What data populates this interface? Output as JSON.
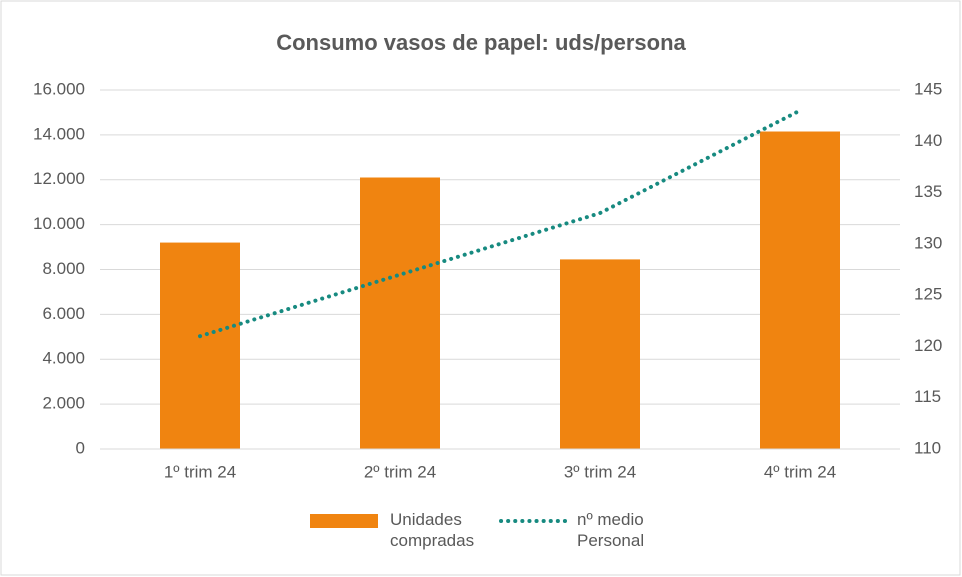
{
  "chart_data": {
    "type": "bar_line",
    "title": "Consumo vasos de papel: uds/persona",
    "categories": [
      "1º trim 24",
      "2º trim 24",
      "3º trim 24",
      "4º trim 24"
    ],
    "series": [
      {
        "name": "Unidades compradas",
        "type": "bar",
        "color": "#f08410",
        "values": [
          9200,
          12100,
          8450,
          14150
        ]
      },
      {
        "name": "nº medio Personal",
        "type": "line",
        "axis": "y2",
        "color": "#178a80",
        "values": [
          121,
          127,
          133,
          143
        ]
      }
    ],
    "ylim": [
      0,
      16000
    ],
    "yticks": [
      0,
      {
        "value": 2000,
        "label": "2.000"
      },
      {
        "value": 4000,
        "label": "4.000"
      },
      {
        "value": 6000,
        "label": "6.000"
      },
      {
        "value": 8000,
        "label": "8.000"
      },
      {
        "value": 10000,
        "label": "10.000"
      },
      {
        "value": 12000,
        "label": "12.000"
      },
      {
        "value": 14000,
        "label": "14.000"
      },
      {
        "value": 16000,
        "label": "16.000"
      }
    ],
    "y2lim": [
      110,
      145
    ],
    "y2ticks": [
      110,
      115,
      120,
      125,
      130,
      135,
      140,
      145
    ],
    "grid": true,
    "legend": "bottom"
  }
}
